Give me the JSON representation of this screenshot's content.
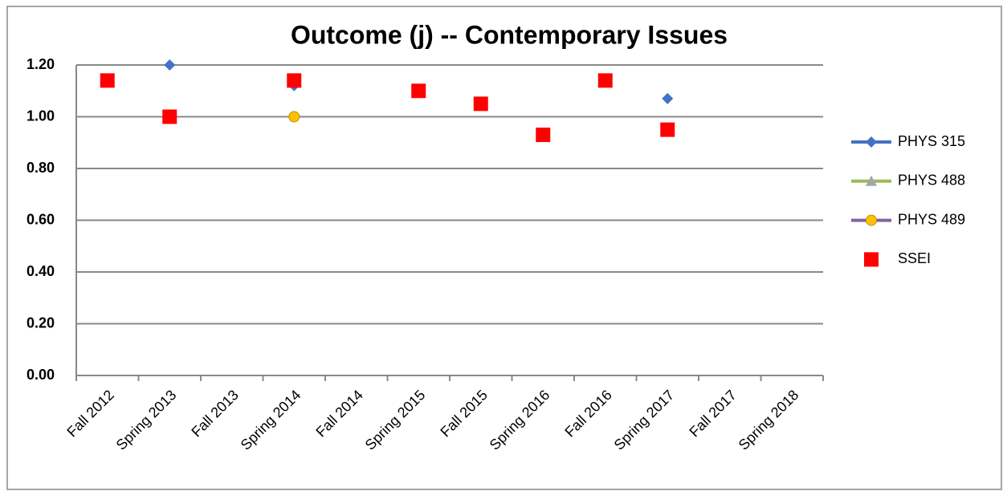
{
  "chart_data": {
    "type": "line",
    "title": "Outcome (j) -- Contemporary Issues",
    "categories": [
      "Fall 2012",
      "Spring 2013",
      "Fall 2013",
      "Spring 2014",
      "Fall 2014",
      "Spring 2015",
      "Fall 2015",
      "Spring 2016",
      "Fall 2016",
      "Spring 2017",
      "Fall 2017",
      "Spring 2018"
    ],
    "series": [
      {
        "name": "PHYS 315",
        "color": "#4472c4",
        "marker": "diamond",
        "marker_color": "#4472c4",
        "line": true,
        "values": [
          null,
          1.2,
          null,
          1.12,
          null,
          null,
          null,
          null,
          null,
          1.07,
          null,
          null
        ]
      },
      {
        "name": "PHYS 488",
        "color": "#9bbb59",
        "marker": "triangle",
        "marker_color": "#a5a5a5",
        "line": true,
        "values": [
          null,
          null,
          null,
          null,
          null,
          null,
          null,
          null,
          null,
          null,
          null,
          null
        ]
      },
      {
        "name": "PHYS 489",
        "color": "#8064a2",
        "marker": "circle",
        "marker_color": "#ffc000",
        "line": true,
        "values": [
          null,
          null,
          null,
          1.0,
          null,
          null,
          null,
          null,
          null,
          null,
          null,
          null
        ]
      },
      {
        "name": "SSEI",
        "color": "#ff0000",
        "marker": "square",
        "marker_color": "#ff0000",
        "line": false,
        "values": [
          1.14,
          1.0,
          null,
          1.14,
          null,
          1.1,
          1.05,
          0.93,
          1.14,
          0.95,
          null,
          null
        ]
      }
    ],
    "ylim": [
      0,
      1.2
    ],
    "yticks": [
      {
        "value": 0,
        "label": "0.00"
      },
      {
        "value": 0.2,
        "label": "0.20"
      },
      {
        "value": 0.4,
        "label": "0.40"
      },
      {
        "value": 0.6,
        "label": "0.60"
      },
      {
        "value": 0.8,
        "label": "0.80"
      },
      {
        "value": 1.0,
        "label": "1.00"
      },
      {
        "value": 1.2,
        "label": "1.20"
      }
    ],
    "grid": true,
    "legend": "right"
  }
}
